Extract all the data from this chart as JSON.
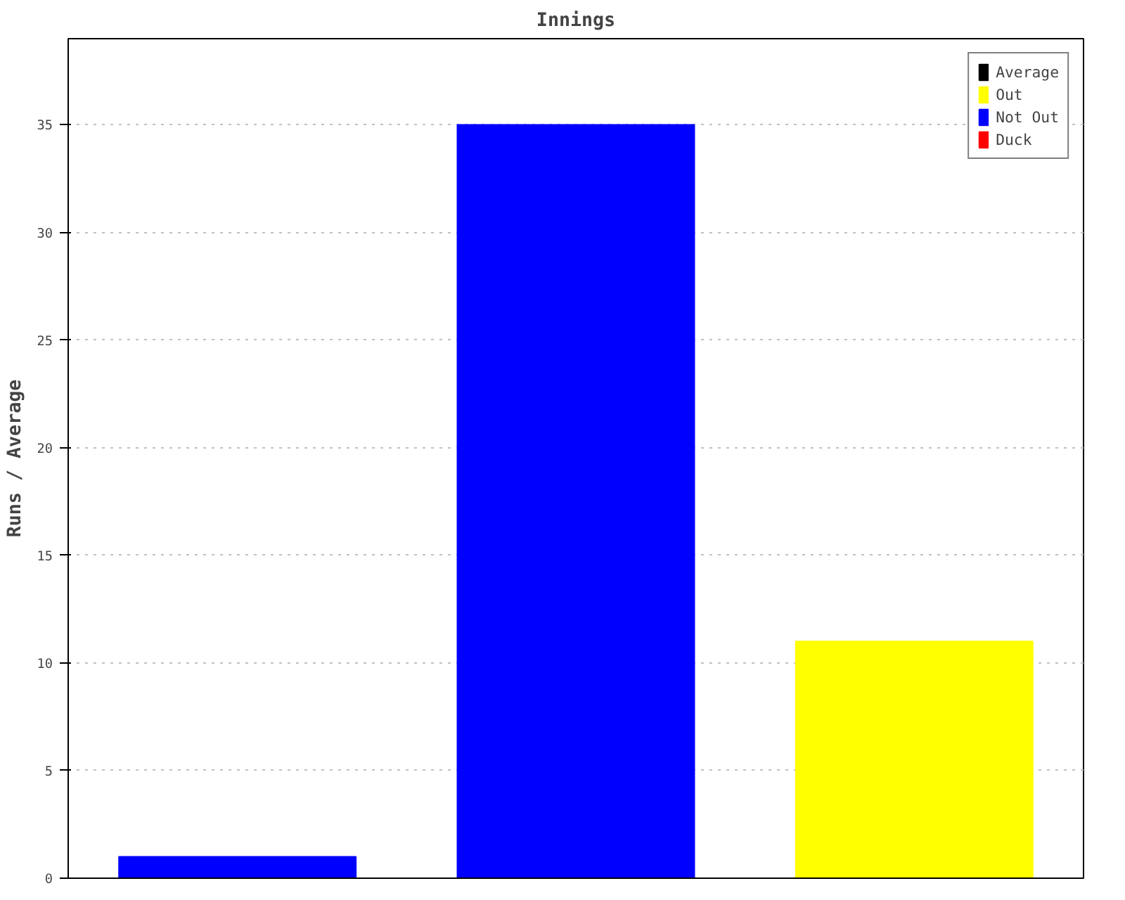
{
  "chart_data": {
    "type": "bar",
    "title": "Innings",
    "ylabel": "Runs / Average",
    "categories": [
      null,
      null,
      null
    ],
    "stacked": true,
    "series": [
      {
        "name": "Average",
        "color": "#000000",
        "values": [
          null,
          null,
          null
        ]
      },
      {
        "name": "Out",
        "color": "#ffff00",
        "values": [
          null,
          null,
          11
        ]
      },
      {
        "name": "Not Out",
        "color": "#0000ff",
        "values": [
          1,
          35,
          null
        ]
      },
      {
        "name": "Duck",
        "color": "#ff0000",
        "values": [
          null,
          null,
          null
        ]
      }
    ],
    "ylim": [
      0,
      39
    ],
    "yticks": [
      0,
      5,
      10,
      15,
      20,
      25,
      30,
      35
    ],
    "grid": "y",
    "legend": "top right"
  }
}
